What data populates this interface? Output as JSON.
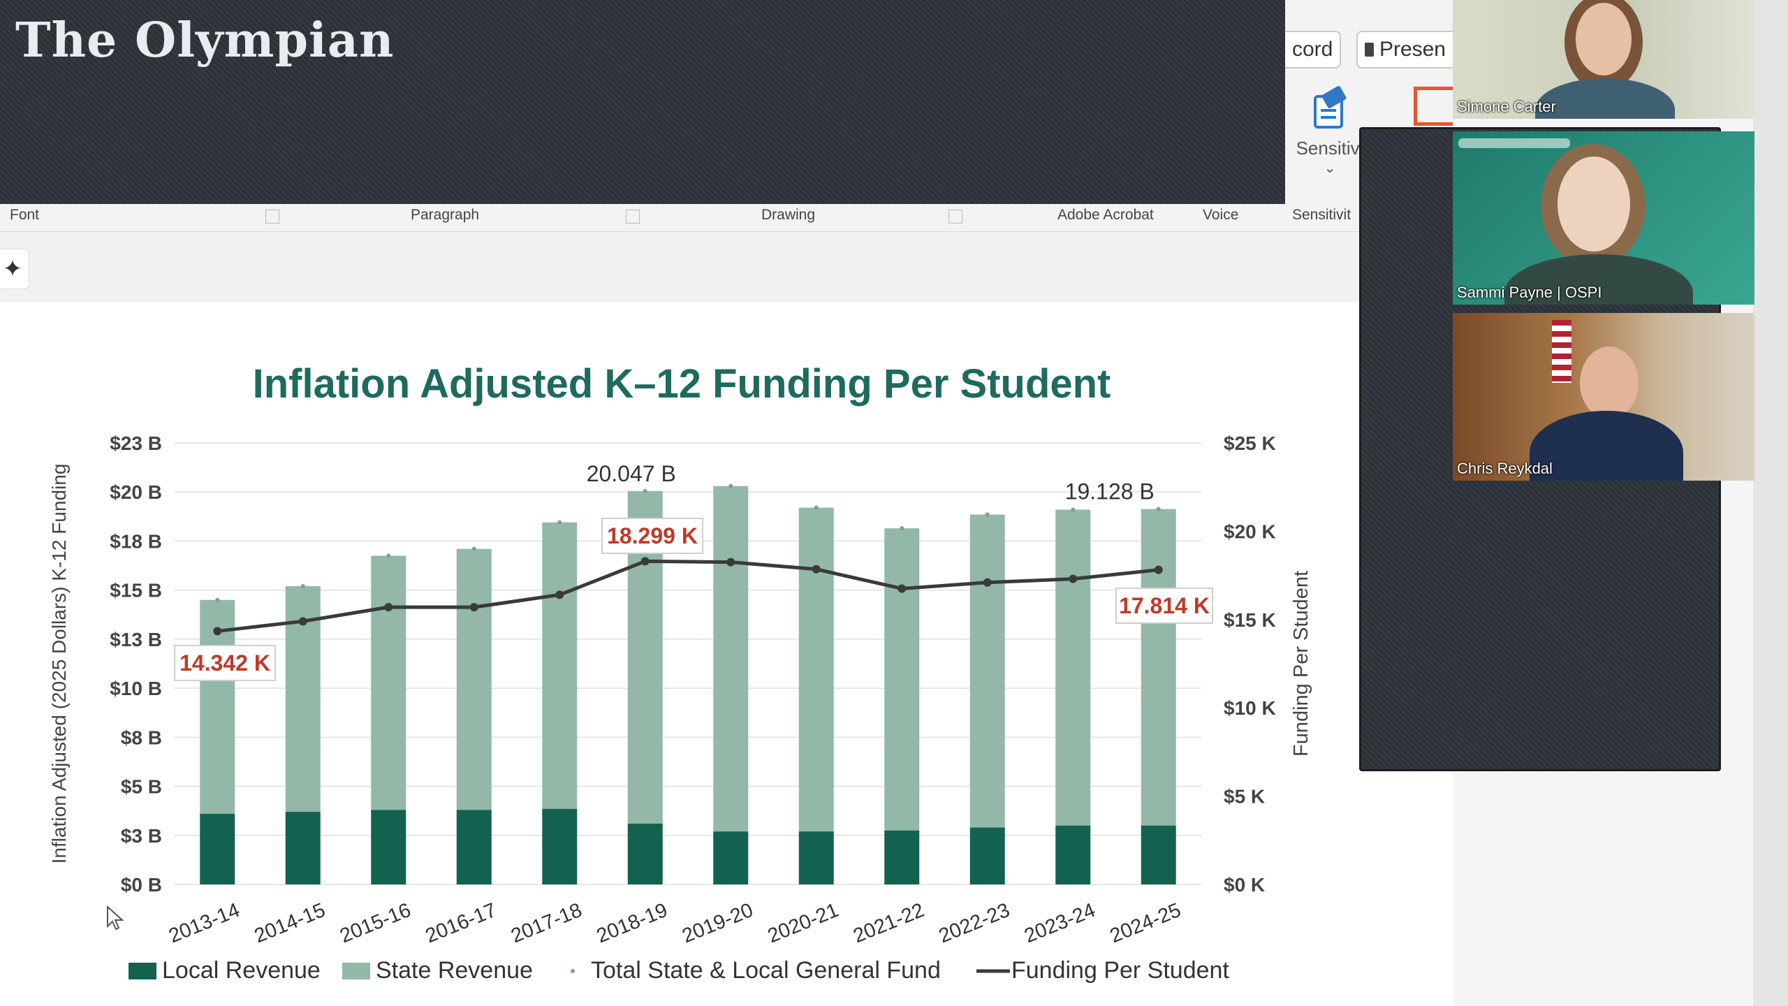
{
  "app": {
    "masthead": "The Olympian",
    "ribbon": {
      "record_label": "cord",
      "present_label": "Presen",
      "sensitivity_label": "Sensitivi",
      "groups": [
        "Font",
        "Paragraph",
        "Drawing",
        "Adobe Acrobat",
        "Voice",
        "Sensitivit"
      ]
    }
  },
  "meeting": {
    "participants": [
      {
        "name": "Simone Carter"
      },
      {
        "name": "Sammi Payne | OSPI"
      },
      {
        "name": "Chris Reykdal"
      }
    ]
  },
  "colors": {
    "title": "#1d6b5e",
    "local_revenue": "#12624f",
    "state_revenue": "#93b8a8",
    "funding_line": "#3a3a3a",
    "callout_text": "#c0392b"
  },
  "chart_data": {
    "type": "bar",
    "title": "Inflation Adjusted K–12 Funding Per Student",
    "ylabel": "Inflation Adjusted (2025 Dollars) K-12 Funding",
    "y2label": "Funding Per Student",
    "categories": [
      "2013-14",
      "2014-15",
      "2015-16",
      "2016-17",
      "2017-18",
      "2018-19",
      "2019-20",
      "2020-21",
      "2021-22",
      "2022-23",
      "2023-24",
      "2024-25"
    ],
    "ylim": [
      0,
      22.5
    ],
    "y2lim": [
      0,
      25
    ],
    "y_ticks": [
      "$0 B",
      "$3 B",
      "$5 B",
      "$8 B",
      "$10 B",
      "$13 B",
      "$15 B",
      "$18 B",
      "$20 B",
      "$23 B"
    ],
    "y2_ticks": [
      "$0 K",
      "$5 K",
      "$10 K",
      "$15 K",
      "$20 K",
      "$25 K"
    ],
    "series": [
      {
        "name": "Local Revenue",
        "values": [
          3.6,
          3.7,
          3.8,
          3.8,
          3.85,
          3.1,
          2.7,
          2.7,
          2.75,
          2.9,
          3.0,
          3.0
        ]
      },
      {
        "name": "State Revenue",
        "values": [
          10.9,
          11.5,
          12.95,
          13.3,
          14.6,
          16.95,
          17.6,
          16.5,
          15.4,
          15.95,
          16.1,
          16.13
        ]
      },
      {
        "name": "Total State & Local General Fund",
        "values": [
          14.5,
          15.2,
          16.75,
          17.1,
          18.45,
          20.05,
          20.3,
          19.2,
          18.15,
          18.85,
          19.1,
          19.13
        ]
      },
      {
        "name": "Funding Per Student",
        "values": [
          14.342,
          14.9,
          15.7,
          15.7,
          16.4,
          18.299,
          18.25,
          17.85,
          16.75,
          17.1,
          17.3,
          17.814
        ]
      }
    ],
    "annotations": {
      "total_peak": "20.047 B",
      "total_last": "19.128 B",
      "fps_first": "14.342 K",
      "fps_peak": "18.299 K",
      "fps_last": "17.814 K"
    },
    "legend": [
      "Local Revenue",
      "State Revenue",
      "Total State & Local General Fund",
      "Funding Per Student"
    ],
    "legend_position": "bottom",
    "grid": true
  }
}
